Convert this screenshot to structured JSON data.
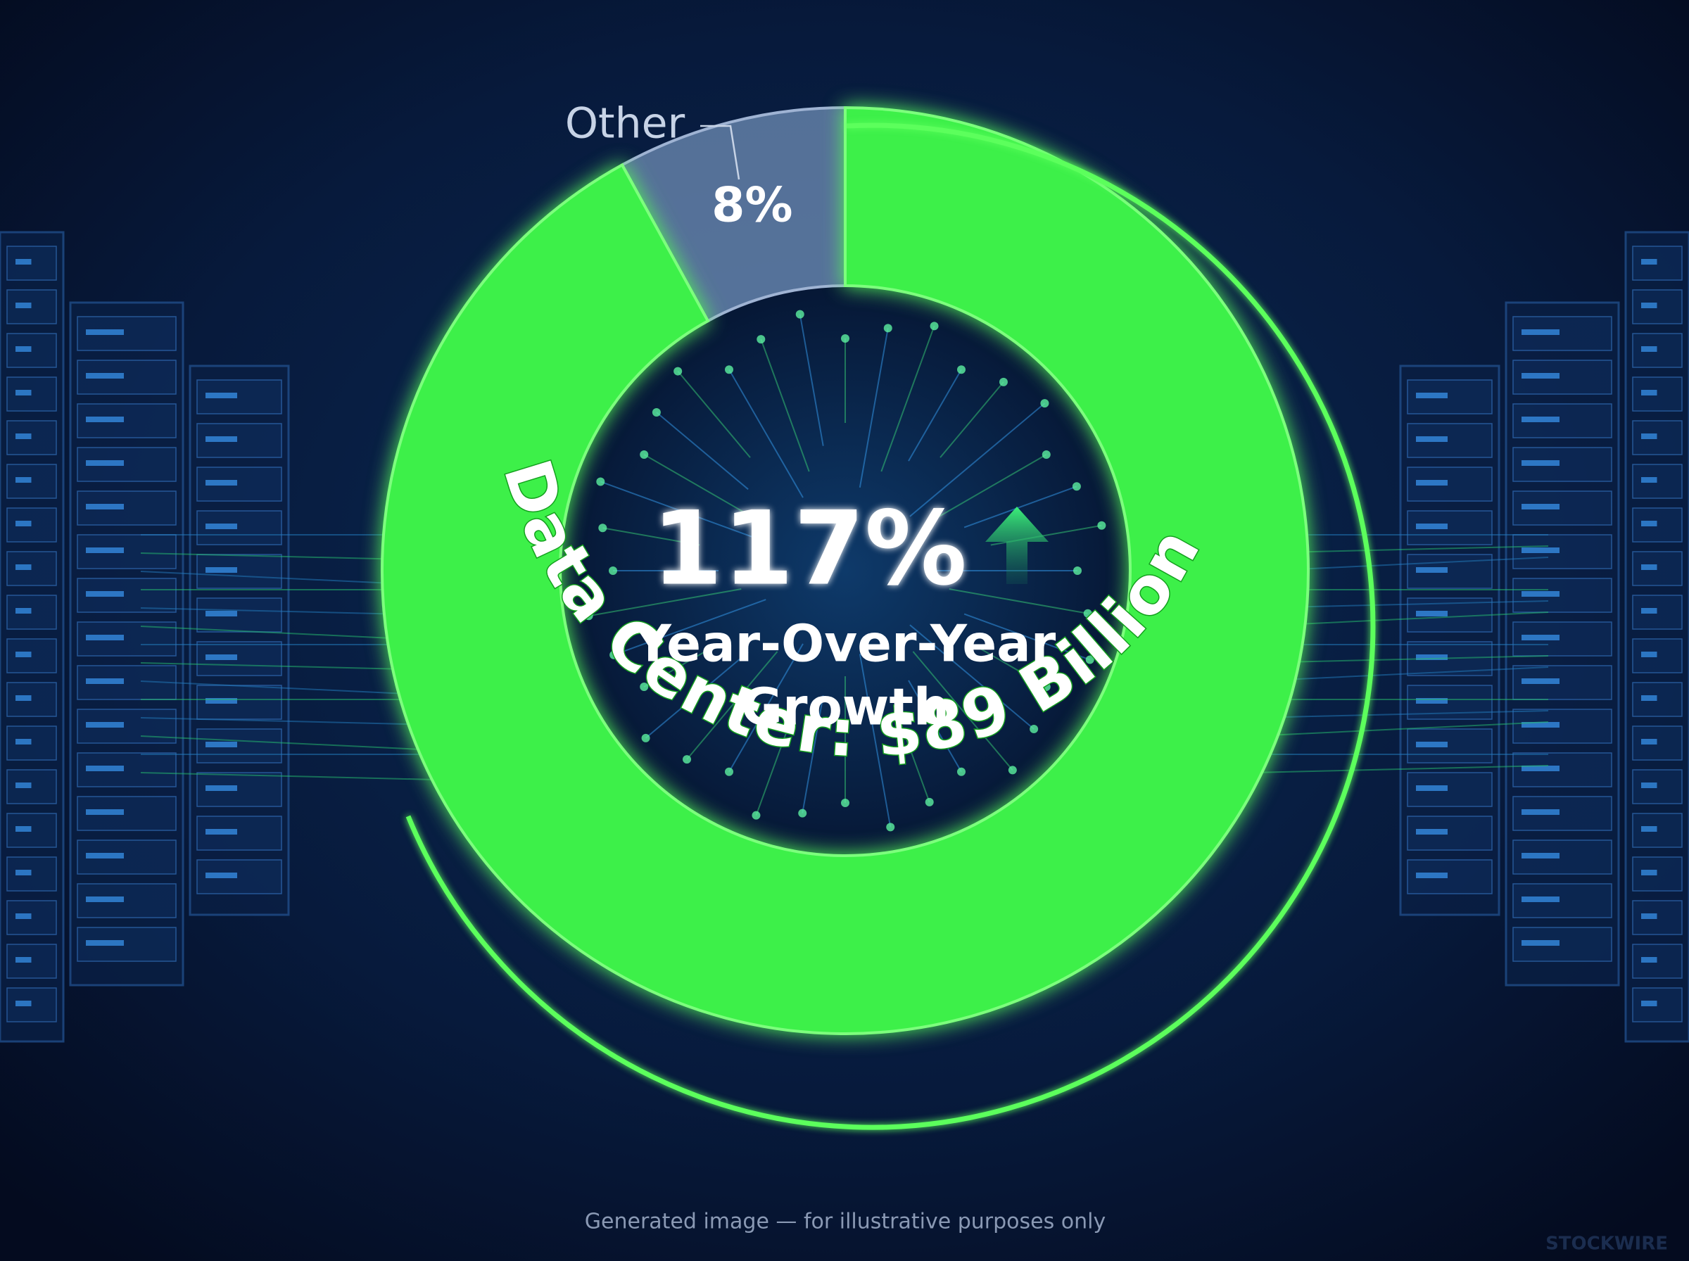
{
  "chart_data": {
    "type": "pie",
    "categories": [
      "Other",
      "Data Center: $89 Billion"
    ],
    "values": [
      8,
      92
    ],
    "value_labels": [
      "8%",
      null
    ],
    "colors": [
      "#6f8db5",
      "#3cf04a"
    ],
    "annotations": [
      "117%",
      "Year-Over-Year",
      "Growth"
    ],
    "footer": "Generated image — for illustrative purposes only",
    "watermark": "STOCKWIRE"
  }
}
